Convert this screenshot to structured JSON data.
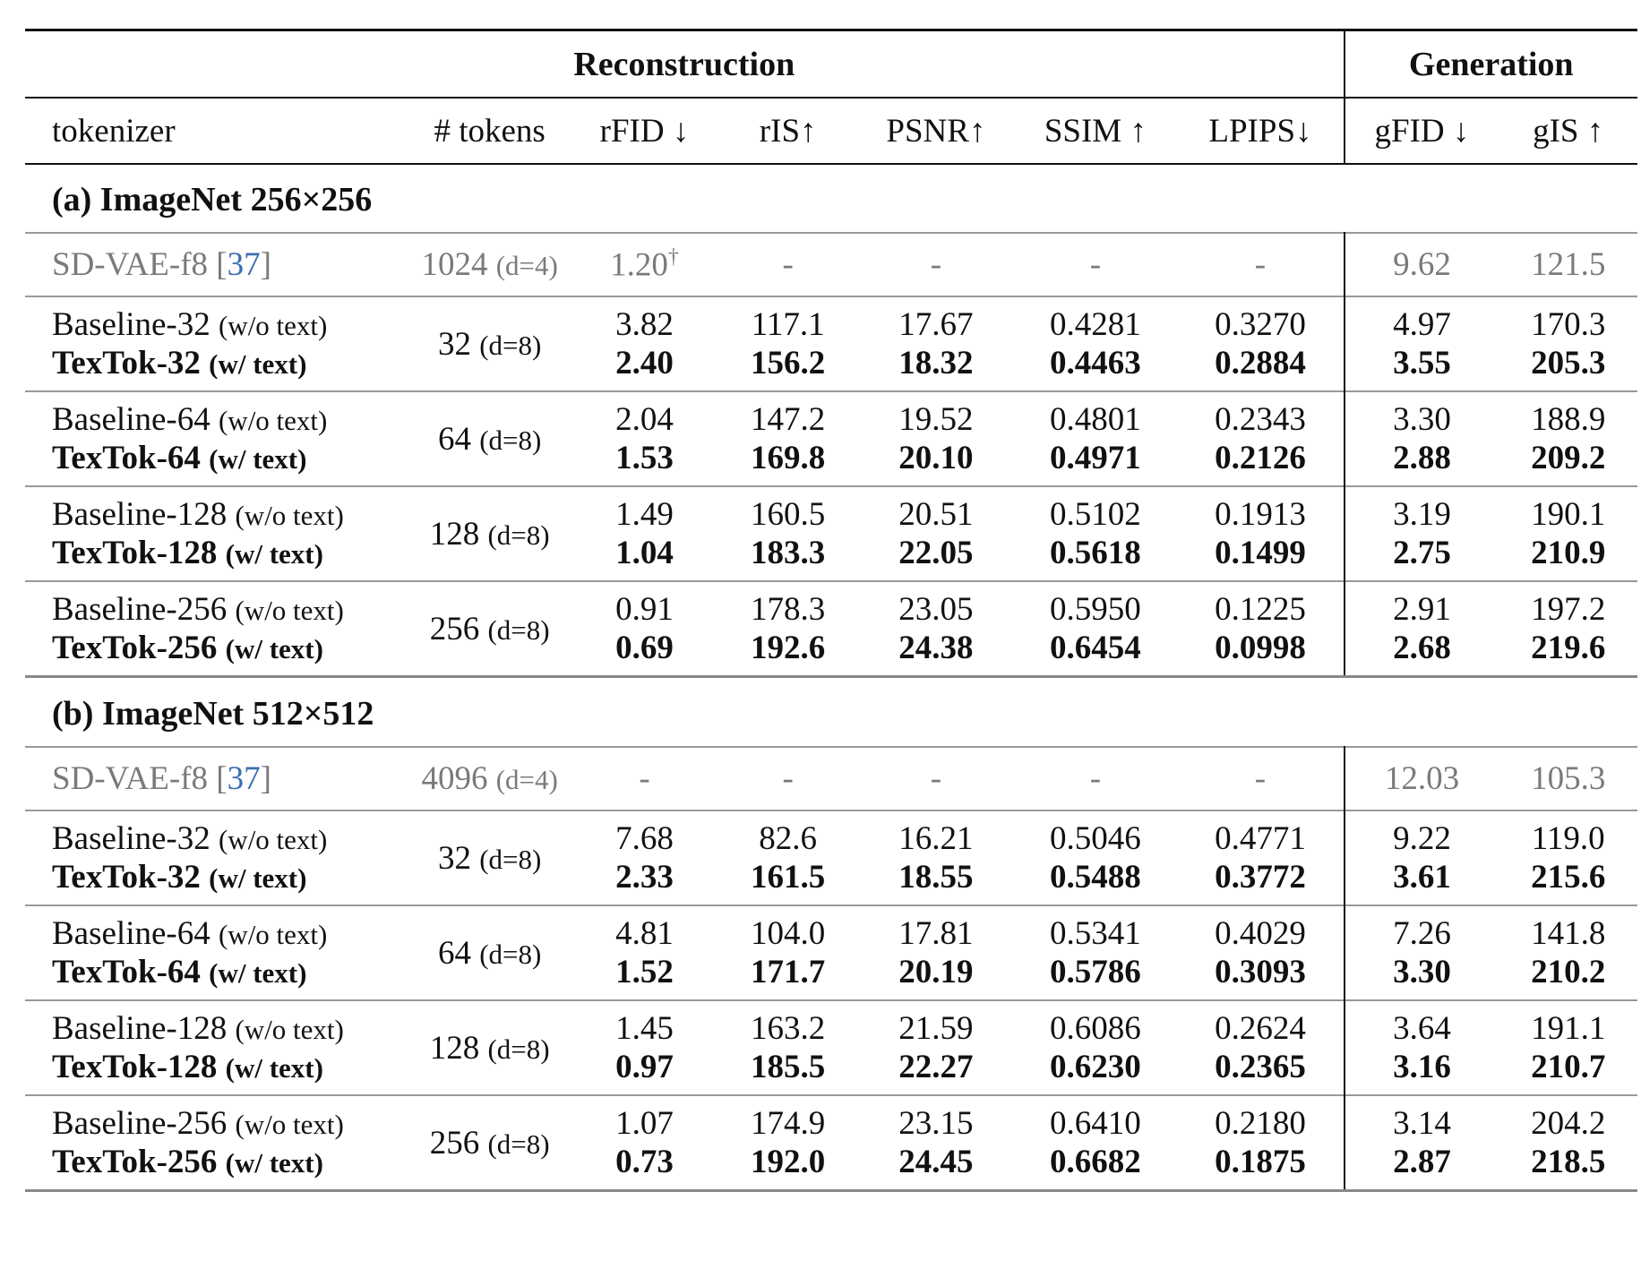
{
  "header": {
    "reconstruction": "Reconstruction",
    "generation": "Generation",
    "columns": [
      "tokenizer",
      "# tokens",
      "rFID ↓",
      "rIS↑",
      "PSNR↑",
      "SSIM ↑",
      "LPIPS↓",
      "gFID ↓",
      "gIS ↑"
    ]
  },
  "sections": [
    {
      "title": "(a) ImageNet 256×256",
      "ref": {
        "name": "SD-VAE-f8 [",
        "cite": "37",
        "close": "]",
        "tokens": "1024",
        "tokens_note": "(d=4)",
        "values": [
          "1.20",
          "-",
          "-",
          "-",
          "-",
          "9.62",
          "121.5"
        ],
        "dagger": "†"
      },
      "groups": [
        {
          "tokens": "32",
          "tokens_note": "(d=8)",
          "baseline_name": "Baseline-32",
          "baseline_note": "(w/o text)",
          "textok_name": "TexTok-32",
          "textok_note": "(w/ text)",
          "baseline": [
            "3.82",
            "117.1",
            "17.67",
            "0.4281",
            "0.3270",
            "4.97",
            "170.3"
          ],
          "textok": [
            "2.40",
            "156.2",
            "18.32",
            "0.4463",
            "0.2884",
            "3.55",
            "205.3"
          ]
        },
        {
          "tokens": "64",
          "tokens_note": "(d=8)",
          "baseline_name": "Baseline-64",
          "baseline_note": "(w/o text)",
          "textok_name": "TexTok-64",
          "textok_note": "(w/ text)",
          "baseline": [
            "2.04",
            "147.2",
            "19.52",
            "0.4801",
            "0.2343",
            "3.30",
            "188.9"
          ],
          "textok": [
            "1.53",
            "169.8",
            "20.10",
            "0.4971",
            "0.2126",
            "2.88",
            "209.2"
          ]
        },
        {
          "tokens": "128",
          "tokens_note": "(d=8)",
          "baseline_name": "Baseline-128",
          "baseline_note": "(w/o text)",
          "textok_name": "TexTok-128",
          "textok_note": "(w/ text)",
          "baseline": [
            "1.49",
            "160.5",
            "20.51",
            "0.5102",
            "0.1913",
            "3.19",
            "190.1"
          ],
          "textok": [
            "1.04",
            "183.3",
            "22.05",
            "0.5618",
            "0.1499",
            "2.75",
            "210.9"
          ]
        },
        {
          "tokens": "256",
          "tokens_note": "(d=8)",
          "baseline_name": "Baseline-256",
          "baseline_note": "(w/o text)",
          "textok_name": "TexTok-256",
          "textok_note": "(w/ text)",
          "baseline": [
            "0.91",
            "178.3",
            "23.05",
            "0.5950",
            "0.1225",
            "2.91",
            "197.2"
          ],
          "textok": [
            "0.69",
            "192.6",
            "24.38",
            "0.6454",
            "0.0998",
            "2.68",
            "219.6"
          ]
        }
      ]
    },
    {
      "title": "(b) ImageNet 512×512",
      "ref": {
        "name": "SD-VAE-f8 [",
        "cite": "37",
        "close": "]",
        "tokens": "4096",
        "tokens_note": "(d=4)",
        "values": [
          "-",
          "-",
          "-",
          "-",
          "-",
          "12.03",
          "105.3"
        ],
        "dagger": ""
      },
      "groups": [
        {
          "tokens": "32",
          "tokens_note": "(d=8)",
          "baseline_name": "Baseline-32",
          "baseline_note": "(w/o text)",
          "textok_name": "TexTok-32",
          "textok_note": "(w/ text)",
          "baseline": [
            "7.68",
            "82.6",
            "16.21",
            "0.5046",
            "0.4771",
            "9.22",
            "119.0"
          ],
          "textok": [
            "2.33",
            "161.5",
            "18.55",
            "0.5488",
            "0.3772",
            "3.61",
            "215.6"
          ]
        },
        {
          "tokens": "64",
          "tokens_note": "(d=8)",
          "baseline_name": "Baseline-64",
          "baseline_note": "(w/o text)",
          "textok_name": "TexTok-64",
          "textok_note": "(w/ text)",
          "baseline": [
            "4.81",
            "104.0",
            "17.81",
            "0.5341",
            "0.4029",
            "7.26",
            "141.8"
          ],
          "textok": [
            "1.52",
            "171.7",
            "20.19",
            "0.5786",
            "0.3093",
            "3.30",
            "210.2"
          ]
        },
        {
          "tokens": "128",
          "tokens_note": "(d=8)",
          "baseline_name": "Baseline-128",
          "baseline_note": "(w/o text)",
          "textok_name": "TexTok-128",
          "textok_note": "(w/ text)",
          "baseline": [
            "1.45",
            "163.2",
            "21.59",
            "0.6086",
            "0.2624",
            "3.64",
            "191.1"
          ],
          "textok": [
            "0.97",
            "185.5",
            "22.27",
            "0.6230",
            "0.2365",
            "3.16",
            "210.7"
          ]
        },
        {
          "tokens": "256",
          "tokens_note": "(d=8)",
          "baseline_name": "Baseline-256",
          "baseline_note": "(w/o text)",
          "textok_name": "TexTok-256",
          "textok_note": "(w/ text)",
          "baseline": [
            "1.07",
            "174.9",
            "23.15",
            "0.6410",
            "0.2180",
            "3.14",
            "204.2"
          ],
          "textok": [
            "0.73",
            "192.0",
            "24.45",
            "0.6682",
            "0.1875",
            "2.87",
            "218.5"
          ]
        }
      ]
    }
  ]
}
